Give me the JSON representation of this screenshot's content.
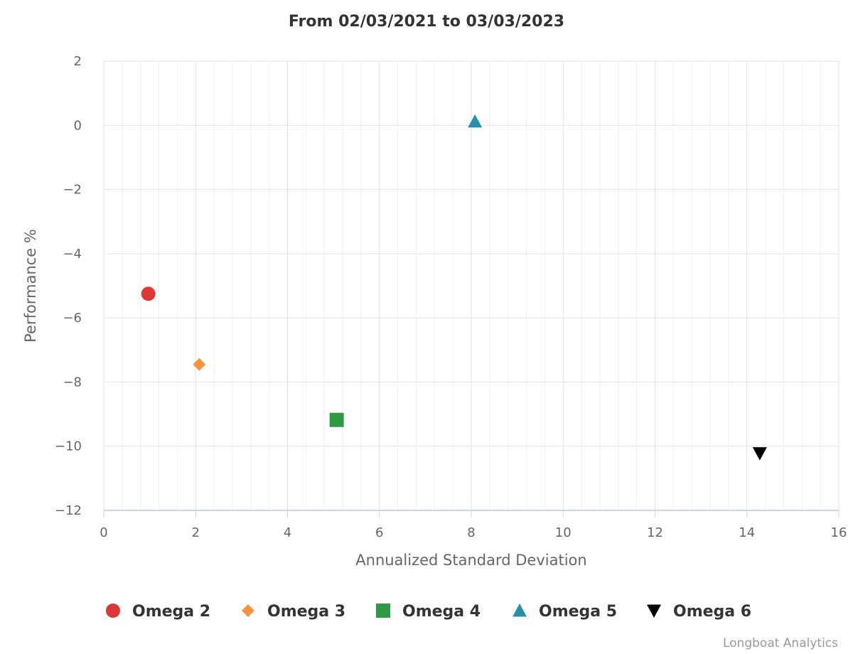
{
  "chart_data": {
    "type": "scatter",
    "title": "From 02/03/2021 to 03/03/2023",
    "xlabel": "Annualized Standard Deviation",
    "ylabel": "Performance %",
    "xlim": [
      0,
      16
    ],
    "ylim": [
      -12,
      2
    ],
    "x_major_ticks": [
      0,
      2,
      4,
      6,
      8,
      10,
      12,
      14,
      16
    ],
    "y_major_ticks": [
      2,
      0,
      -2,
      -4,
      -6,
      -8,
      -10,
      -12
    ],
    "x_tick_labels": [
      "0",
      "2",
      "4",
      "6",
      "8",
      "10",
      "12",
      "14",
      "16"
    ],
    "y_tick_labels": [
      "2",
      "0",
      "−2",
      "−4",
      "−6",
      "−8",
      "−10",
      "−12"
    ],
    "grid": true,
    "legend_position": "bottom",
    "series": [
      {
        "name": "Omega 2",
        "marker": "circle",
        "color": "#dc3838",
        "points": [
          {
            "x": 0.97,
            "y": -5.25
          }
        ]
      },
      {
        "name": "Omega 3",
        "marker": "diamond",
        "color": "#f7943d",
        "points": [
          {
            "x": 2.08,
            "y": -7.45
          }
        ]
      },
      {
        "name": "Omega 4",
        "marker": "square",
        "color": "#2e9a43",
        "points": [
          {
            "x": 5.07,
            "y": -9.18
          }
        ]
      },
      {
        "name": "Omega 5",
        "marker": "triangle",
        "color": "#2490a9",
        "points": [
          {
            "x": 8.08,
            "y": 0.12
          }
        ]
      },
      {
        "name": "Omega 6",
        "marker": "triangle-down",
        "color": "#000000",
        "points": [
          {
            "x": 14.28,
            "y": -10.22
          }
        ]
      }
    ]
  },
  "credit": "Longboat Analytics"
}
